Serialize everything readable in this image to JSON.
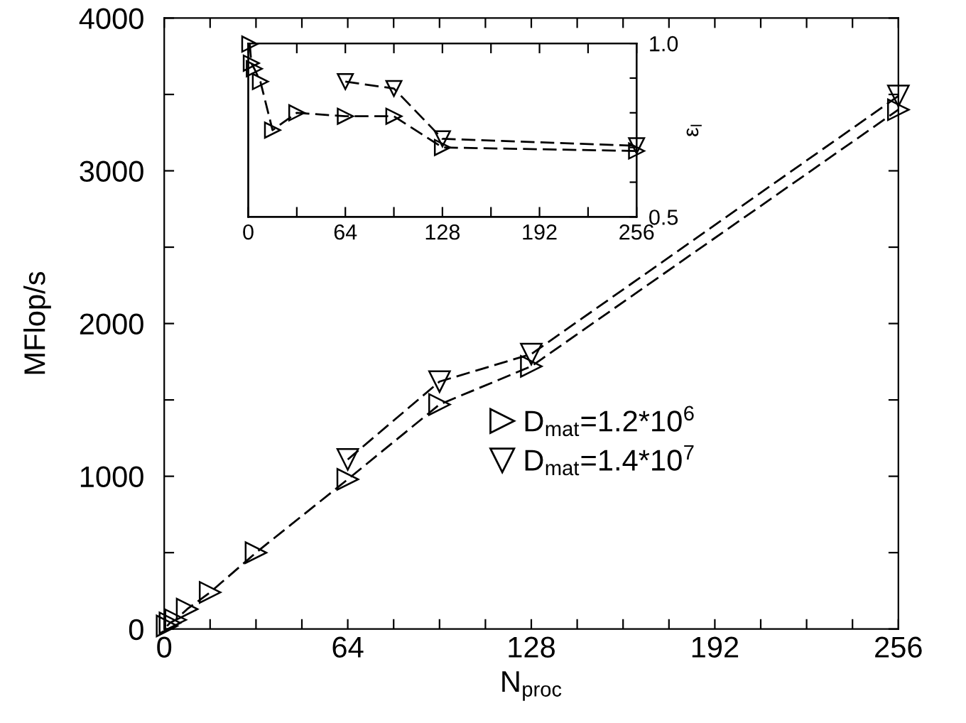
{
  "chart_data": [
    {
      "type": "line",
      "xlabel": "N$_{proc}$",
      "ylabel": "MFlop/s",
      "xlim": [
        0,
        256
      ],
      "ylim": [
        0,
        4000
      ],
      "xticks": [
        0,
        {
          "value": 16,
          "label": null
        },
        {
          "value": 32,
          "label": null
        },
        {
          "value": 48,
          "label": null
        },
        64,
        {
          "value": 80,
          "label": null
        },
        {
          "value": 96,
          "label": null
        },
        {
          "value": 112,
          "label": null
        },
        128,
        {
          "value": 144,
          "label": null
        },
        {
          "value": 160,
          "label": null
        },
        {
          "value": 176,
          "label": null
        },
        192,
        {
          "value": 208,
          "label": null
        },
        {
          "value": 224,
          "label": null
        },
        {
          "value": 240,
          "label": null
        },
        256
      ],
      "yticks": [
        0,
        {
          "value": 500,
          "label": null
        },
        1000,
        {
          "value": 1500,
          "label": null
        },
        2000,
        {
          "value": 2500,
          "label": null
        },
        3000,
        {
          "value": 3500,
          "label": null
        },
        4000
      ],
      "line_style": "dashed",
      "grid": false,
      "legend": "bottom",
      "series": [
        {
          "name": "D$_{mat}$=1.2*10$^{6}$",
          "color": "#000000",
          "marker": "triangle-right",
          "x": [
            1,
            2,
            4,
            8,
            16,
            32,
            64,
            96,
            128,
            256
          ],
          "values": [
            20,
            40,
            60,
            130,
            240,
            500,
            980,
            1470,
            1720,
            3400
          ]
        },
        {
          "name": "D$_{mat}$=1.4*10$^{7}$",
          "color": "#000000",
          "marker": "triangle-down",
          "x": [
            64,
            96,
            128,
            256
          ],
          "values": [
            1110,
            1620,
            1800,
            3490
          ]
        }
      ]
    },
    {
      "type": "line",
      "y2label": "ε$_{l}$",
      "xlim": [
        0,
        256
      ],
      "y2lim": [
        0.5,
        1.0
      ],
      "xticks": [
        0,
        {
          "value": 32,
          "label": null
        },
        64,
        {
          "value": 96,
          "label": null
        },
        128,
        {
          "value": 160,
          "label": null
        },
        192,
        {
          "value": 224,
          "label": null
        },
        256
      ],
      "y2ticks": [
        0.5,
        {
          "value": 0.6,
          "label": null
        },
        {
          "value": 0.7,
          "label": null
        },
        {
          "value": 0.8,
          "label": null
        },
        {
          "value": 0.9,
          "label": null
        },
        {
          "value": 1.0,
          "label": "1.0"
        }
      ],
      "line_style": "dashed",
      "grid": false,
      "series": [
        {
          "color": "#000000",
          "marker": "triangle-right",
          "axis": "y2",
          "x": [
            1,
            2,
            4,
            8,
            16,
            32,
            64,
            96,
            128,
            256
          ],
          "values": [
            0.998,
            0.943,
            0.927,
            0.89,
            0.75,
            0.8,
            0.79,
            0.79,
            0.7,
            0.69
          ]
        },
        {
          "color": "#000000",
          "marker": "triangle-down",
          "axis": "y2",
          "x": [
            64,
            96,
            128,
            256
          ],
          "values": [
            0.89,
            0.87,
            0.725,
            0.705
          ]
        }
      ]
    }
  ]
}
